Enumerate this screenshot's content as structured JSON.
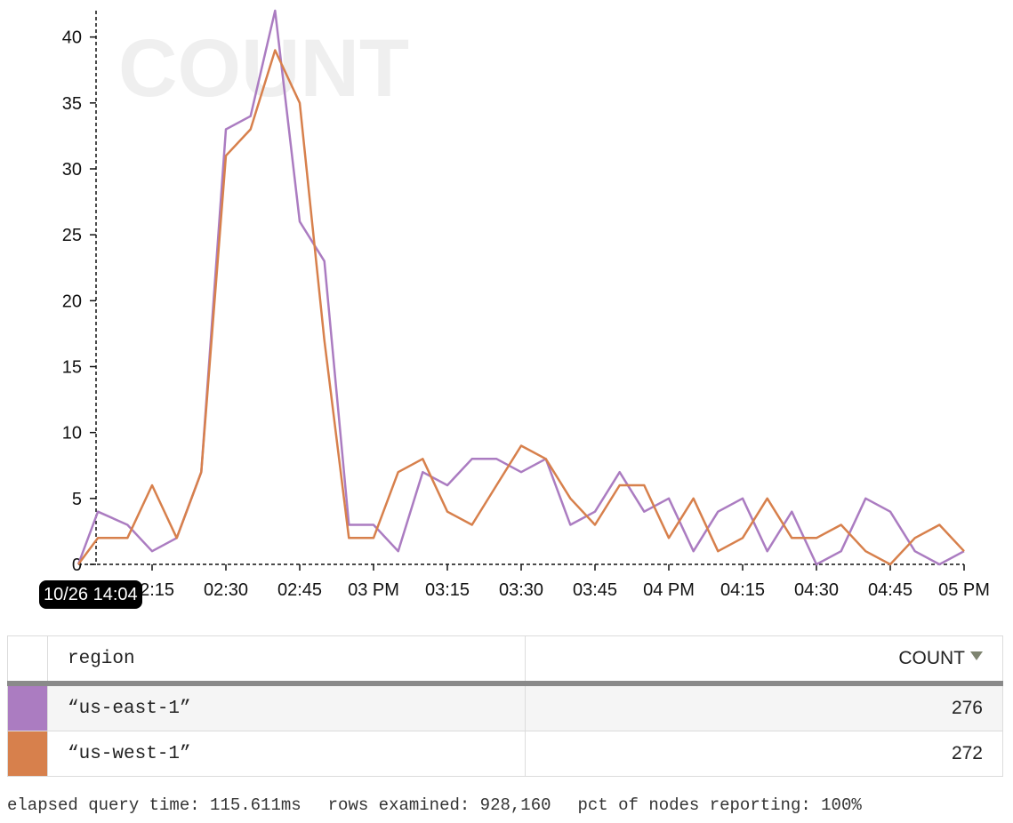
{
  "chart_data": {
    "type": "line",
    "title": "COUNT",
    "xlabel": "",
    "ylabel": "",
    "ylim": [
      0,
      42
    ],
    "y_ticks": [
      0,
      5,
      10,
      15,
      20,
      25,
      30,
      35,
      40
    ],
    "x_range": [
      "14:00",
      "17:00"
    ],
    "x_ticks": [
      {
        "time": "14:15",
        "label": "02:15"
      },
      {
        "time": "14:30",
        "label": "02:30"
      },
      {
        "time": "14:45",
        "label": "02:45"
      },
      {
        "time": "15:00",
        "label": "03 PM"
      },
      {
        "time": "15:15",
        "label": "03:15"
      },
      {
        "time": "15:30",
        "label": "03:30"
      },
      {
        "time": "15:45",
        "label": "03:45"
      },
      {
        "time": "16:00",
        "label": "04 PM"
      },
      {
        "time": "16:15",
        "label": "04:15"
      },
      {
        "time": "16:30",
        "label": "04:30"
      },
      {
        "time": "16:45",
        "label": "04:45"
      },
      {
        "time": "17:00",
        "label": "05 PM"
      }
    ],
    "grid": false,
    "legend": "none",
    "cursor_label": "10/26 14:04",
    "x": [
      "14:00",
      "14:04",
      "14:10",
      "14:15",
      "14:20",
      "14:25",
      "14:30",
      "14:35",
      "14:40",
      "14:45",
      "14:50",
      "14:55",
      "15:00",
      "15:05",
      "15:10",
      "15:15",
      "15:20",
      "15:25",
      "15:30",
      "15:35",
      "15:40",
      "15:45",
      "15:50",
      "15:55",
      "16:00",
      "16:05",
      "16:10",
      "16:15",
      "16:20",
      "16:25",
      "16:30",
      "16:35",
      "16:40",
      "16:45",
      "16:50",
      "16:55",
      "17:00"
    ],
    "series": [
      {
        "name": "“us-east-1”",
        "color": "#ab7cc1",
        "values": [
          0,
          4,
          3,
          1,
          2,
          7,
          33,
          34,
          42,
          26,
          23,
          3,
          3,
          1,
          7,
          6,
          8,
          8,
          7,
          8,
          3,
          4,
          7,
          4,
          5,
          1,
          4,
          5,
          1,
          4,
          0,
          1,
          5,
          4,
          1,
          0,
          1
        ]
      },
      {
        "name": "“us-west-1”",
        "color": "#d7804c",
        "values": [
          0,
          2,
          2,
          6,
          2,
          7,
          31,
          33,
          39,
          35,
          17,
          2,
          2,
          7,
          8,
          4,
          3,
          6,
          9,
          8,
          5,
          3,
          6,
          6,
          2,
          5,
          1,
          2,
          5,
          2,
          2,
          3,
          1,
          0,
          2,
          3,
          1
        ]
      }
    ]
  },
  "table": {
    "headers": {
      "region": "region",
      "count": "COUNT"
    },
    "sort_indicator": "sort-descending-icon",
    "rows": [
      {
        "region": "“us-east-1”",
        "count": "276",
        "color": "#ab7cc1"
      },
      {
        "region": "“us-west-1”",
        "count": "272",
        "color": "#d7804c"
      }
    ]
  },
  "footer": {
    "elapsed": "elapsed query time: 115.611ms",
    "rows": "rows examined: 928,160",
    "pct": "pct of nodes reporting: 100%"
  }
}
